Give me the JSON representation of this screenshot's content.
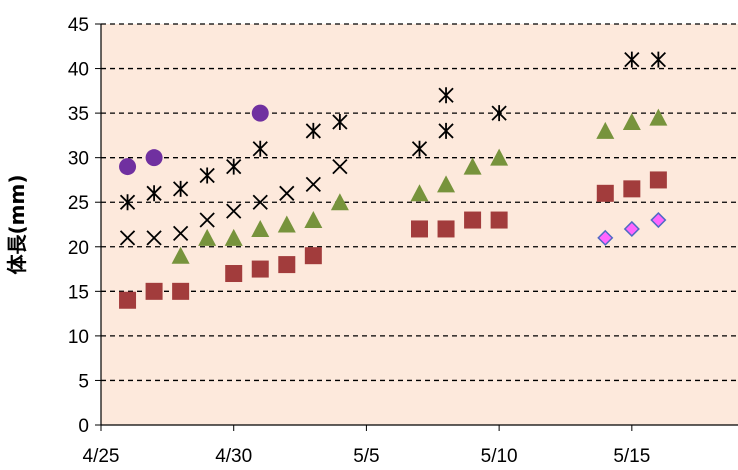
{
  "chart_data": {
    "type": "scatter",
    "title": "",
    "xlabel": "",
    "ylabel": "体長(mm)",
    "x_axis": {
      "type": "date",
      "range": [
        "4/25",
        "5/19"
      ],
      "ticks": [
        "4/25",
        "4/30",
        "5/5",
        "5/10",
        "5/15"
      ]
    },
    "y_axis": {
      "range": [
        0,
        45
      ],
      "ticks": [
        0,
        5,
        10,
        15,
        20,
        25,
        30,
        35,
        40,
        45
      ]
    },
    "grid": "horizontal dashed",
    "legend": "none",
    "plot_background": "#fde9dc",
    "series": [
      {
        "marker": "circle",
        "color": "#7030a0",
        "points": [
          [
            "4/26",
            29
          ],
          [
            "4/27",
            30
          ],
          [
            "5/1",
            35
          ]
        ]
      },
      {
        "marker": "asterisk",
        "color": "#000000",
        "points": [
          [
            "4/26",
            25
          ],
          [
            "4/27",
            26
          ],
          [
            "4/28",
            26.5
          ],
          [
            "4/29",
            28
          ],
          [
            "4/30",
            29
          ],
          [
            "5/1",
            31
          ],
          [
            "5/3",
            33
          ],
          [
            "5/4",
            34
          ],
          [
            "5/7",
            31
          ],
          [
            "5/8",
            37
          ],
          [
            "5/8",
            33
          ],
          [
            "5/10",
            35
          ],
          [
            "5/15",
            41
          ],
          [
            "5/16",
            41
          ]
        ]
      },
      {
        "marker": "x",
        "color": "#000000",
        "points": [
          [
            "4/26",
            21
          ],
          [
            "4/27",
            21
          ],
          [
            "4/28",
            21.5
          ],
          [
            "4/29",
            23
          ],
          [
            "4/30",
            24
          ],
          [
            "5/1",
            25
          ],
          [
            "5/2",
            26
          ],
          [
            "5/3",
            27
          ],
          [
            "5/4",
            29
          ]
        ]
      },
      {
        "marker": "triangle",
        "color": "#77933c",
        "points": [
          [
            "4/28",
            19
          ],
          [
            "4/29",
            21
          ],
          [
            "4/30",
            21
          ],
          [
            "5/1",
            22
          ],
          [
            "5/2",
            22.5
          ],
          [
            "5/3",
            23
          ],
          [
            "5/4",
            25
          ],
          [
            "5/7",
            26
          ],
          [
            "5/8",
            27
          ],
          [
            "5/9",
            29
          ],
          [
            "5/10",
            30
          ],
          [
            "5/14",
            33
          ],
          [
            "5/15",
            34
          ],
          [
            "5/16",
            34.5
          ]
        ]
      },
      {
        "marker": "square",
        "color": "#a23c3c",
        "points": [
          [
            "4/26",
            14
          ],
          [
            "4/27",
            15
          ],
          [
            "4/28",
            15
          ],
          [
            "4/30",
            17
          ],
          [
            "5/1",
            17.5
          ],
          [
            "5/2",
            18
          ],
          [
            "5/3",
            19
          ],
          [
            "5/7",
            22
          ],
          [
            "5/8",
            22
          ],
          [
            "5/9",
            23
          ],
          [
            "5/10",
            23
          ],
          [
            "5/14",
            26
          ],
          [
            "5/15",
            26.5
          ],
          [
            "5/16",
            27.5
          ]
        ]
      },
      {
        "marker": "diamond",
        "color": "#ff66ff",
        "points": [
          [
            "5/14",
            21
          ],
          [
            "5/15",
            22
          ],
          [
            "5/16",
            23
          ]
        ]
      }
    ]
  }
}
